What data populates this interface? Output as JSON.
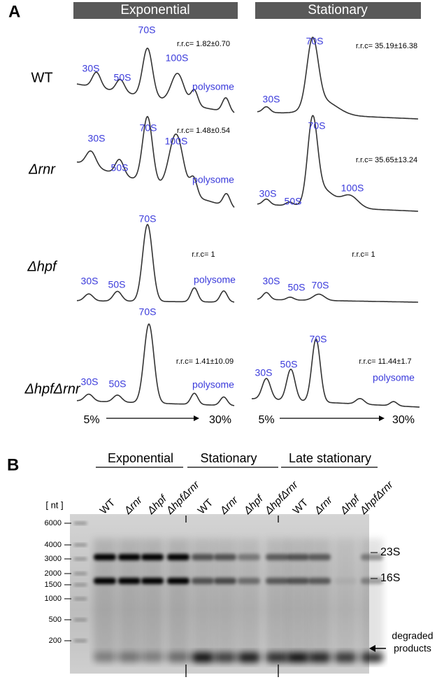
{
  "panel_a": {
    "label": "A",
    "columns": [
      "Exponential",
      "Stationary"
    ],
    "rows": [
      {
        "strain": "WT",
        "exponential": {
          "rrc": "r.r.c= 1.82±0.70",
          "peaks": [
            "30S",
            "50S",
            "70S",
            "100S",
            "polysome"
          ]
        },
        "stationary": {
          "rrc": "r.r.c= 35.19±16.38",
          "peaks": [
            "30S",
            "70S"
          ]
        }
      },
      {
        "strain": "Δrnr",
        "exponential": {
          "rrc": "r.r.c= 1.48±0.54",
          "peaks": [
            "30S",
            "50S",
            "70S",
            "100S",
            "polysome"
          ]
        },
        "stationary": {
          "rrc": "r.r.c= 35.65±13.24",
          "peaks": [
            "30S",
            "50S",
            "70S",
            "100S"
          ]
        }
      },
      {
        "strain": "Δhpf",
        "exponential": {
          "rrc": "r.r.c= 1",
          "peaks": [
            "30S",
            "50S",
            "70S",
            "polysome"
          ]
        },
        "stationary": {
          "rrc": "r.r.c= 1",
          "peaks": [
            "30S",
            "50S",
            "70S"
          ]
        }
      },
      {
        "strain": "ΔhpfΔrnr",
        "exponential": {
          "rrc": "r.r.c= 1.41±10.09",
          "peaks": [
            "30S",
            "50S",
            "70S",
            "polysome"
          ]
        },
        "stationary": {
          "rrc": "r.r.c= 11.44±1.7",
          "peaks": [
            "30S",
            "50S",
            "70S",
            "polysome"
          ]
        }
      }
    ],
    "gradient": {
      "low": "5%",
      "high": "30%"
    }
  },
  "panel_b": {
    "label": "B",
    "groups": [
      {
        "name": "Exponential",
        "lanes": [
          "WT",
          "Δrnr",
          "Δhpf",
          "ΔhpfΔrnr"
        ]
      },
      {
        "name": "Stationary",
        "lanes": [
          "WT",
          "Δrnr",
          "Δhpf",
          "ΔhpfΔrnr"
        ]
      },
      {
        "name": "Late stationary",
        "lanes": [
          "WT",
          "Δrnr",
          "Δhpf",
          "ΔhpfΔrnr"
        ]
      }
    ],
    "size_unit": "[ nt ]",
    "ladder": [
      6000,
      4000,
      3000,
      2000,
      1500,
      1000,
      500,
      200
    ],
    "bands": [
      "23S",
      "16S"
    ],
    "degraded": [
      "degraded",
      "products"
    ]
  }
}
